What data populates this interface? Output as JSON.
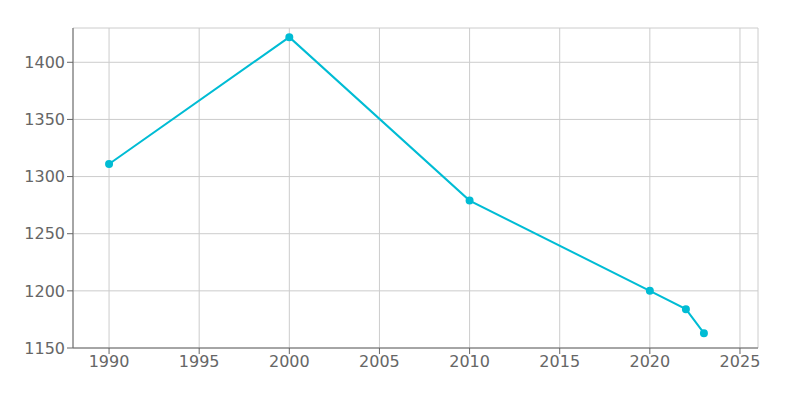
{
  "chart_data": {
    "type": "line",
    "x": [
      1990,
      2000,
      2010,
      2020,
      2022,
      2023
    ],
    "values": [
      1311,
      1422,
      1279,
      1200,
      1184,
      1163
    ],
    "color": "#00bcd4",
    "marker": "circle",
    "xlim": [
      1988,
      2026
    ],
    "ylim": [
      1150,
      1430
    ],
    "xticks": [
      1990,
      1995,
      2000,
      2005,
      2010,
      2015,
      2020,
      2025
    ],
    "yticks": [
      1150,
      1200,
      1250,
      1300,
      1350,
      1400
    ],
    "grid": true
  }
}
